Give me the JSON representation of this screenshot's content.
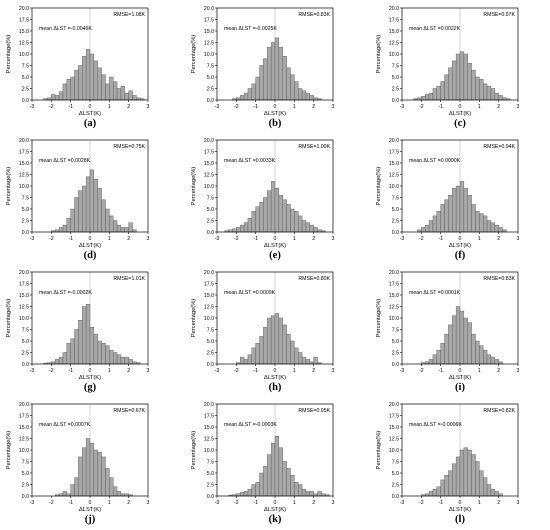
{
  "layout": {
    "rows": 4,
    "cols": 3
  },
  "colors": {
    "bar_fill": "#a8a8a8",
    "bar_stroke": "#555555",
    "zero_line": "#bbbbbb",
    "axis": "#000000"
  },
  "chart_data": [
    {
      "type": "bar",
      "panel": "(a)",
      "xlabel": "ΔLST(K)",
      "ylabel": "Percentage(%)",
      "xlim": [
        -3,
        3
      ],
      "ylim": [
        0,
        20
      ],
      "xticks": [
        -3,
        -2,
        -1,
        0,
        1,
        2,
        3
      ],
      "yticks": [
        0,
        2.5,
        5,
        7.5,
        10,
        12.5,
        15,
        17.5,
        20
      ],
      "rmse_label": "RMSE=1.08K",
      "mean_label": "mean ΔLST =-0.0046K",
      "bin_width": 0.2,
      "bin_centers": [
        -2.3,
        -2.1,
        -1.9,
        -1.7,
        -1.5,
        -1.3,
        -1.1,
        -0.9,
        -0.7,
        -0.5,
        -0.3,
        -0.1,
        0.1,
        0.3,
        0.5,
        0.7,
        0.9,
        1.1,
        1.3,
        1.5,
        1.7,
        1.9,
        2.1,
        2.3,
        2.5,
        2.7
      ],
      "values": [
        0.3,
        0.5,
        1.2,
        1.0,
        1.8,
        3.5,
        4.5,
        5.0,
        6.5,
        7.5,
        9.5,
        11.0,
        10.0,
        8.5,
        7.0,
        5.5,
        3.5,
        5.0,
        4.0,
        2.5,
        3.0,
        1.5,
        2.0,
        1.0,
        0.5,
        0.3
      ]
    },
    {
      "type": "bar",
      "panel": "(b)",
      "xlabel": "ΔLST(K)",
      "ylabel": "Percentage(%)",
      "xlim": [
        -3,
        3
      ],
      "ylim": [
        0,
        20
      ],
      "xticks": [
        -3,
        -2,
        -1,
        0,
        1,
        2,
        3
      ],
      "yticks": [
        0,
        2.5,
        5,
        7.5,
        10,
        12.5,
        15,
        17.5,
        20
      ],
      "rmse_label": "RMSE=0.83K",
      "mean_label": "mean ΔLST =-0.0025K",
      "bin_width": 0.2,
      "bin_centers": [
        -2.1,
        -1.9,
        -1.7,
        -1.5,
        -1.3,
        -1.1,
        -0.9,
        -0.7,
        -0.5,
        -0.3,
        -0.1,
        0.1,
        0.3,
        0.5,
        0.7,
        0.9,
        1.1,
        1.3,
        1.5,
        1.7,
        1.9,
        2.1,
        2.3
      ],
      "values": [
        0.3,
        0.5,
        1.0,
        1.5,
        2.5,
        3.5,
        5.0,
        7.5,
        9.0,
        11.5,
        12.5,
        13.5,
        11.5,
        9.5,
        7.0,
        5.5,
        4.0,
        2.5,
        2.0,
        1.5,
        1.0,
        0.5,
        0.3
      ]
    },
    {
      "type": "bar",
      "panel": "(c)",
      "xlabel": "ΔLST(K)",
      "ylabel": "Percentage(%)",
      "xlim": [
        -3,
        3
      ],
      "ylim": [
        0,
        20
      ],
      "xticks": [
        -3,
        -2,
        -1,
        0,
        1,
        2,
        3
      ],
      "yticks": [
        0,
        2.5,
        5,
        7.5,
        10,
        12.5,
        15,
        17.5,
        20
      ],
      "rmse_label": "RMSE=0.97K",
      "mean_label": "mean ΔLST =0.0022K",
      "bin_width": 0.2,
      "bin_centers": [
        -2.3,
        -2.1,
        -1.9,
        -1.7,
        -1.5,
        -1.3,
        -1.1,
        -0.9,
        -0.7,
        -0.5,
        -0.3,
        -0.1,
        0.1,
        0.3,
        0.5,
        0.7,
        0.9,
        1.1,
        1.3,
        1.5,
        1.7,
        1.9,
        2.1,
        2.3,
        2.5
      ],
      "values": [
        0.3,
        0.5,
        0.8,
        1.2,
        1.5,
        2.5,
        3.0,
        4.0,
        5.5,
        7.0,
        8.5,
        10.0,
        10.5,
        10.0,
        8.0,
        6.5,
        5.0,
        4.5,
        3.5,
        3.0,
        2.5,
        1.5,
        1.0,
        0.5,
        0.3
      ]
    },
    {
      "type": "bar",
      "panel": "(d)",
      "xlabel": "ΔLST(K)",
      "ylabel": "Percentage(%)",
      "xlim": [
        -3,
        3
      ],
      "ylim": [
        0,
        20
      ],
      "xticks": [
        -3,
        -2,
        -1,
        0,
        1,
        2,
        3
      ],
      "yticks": [
        0,
        2.5,
        5,
        7.5,
        10,
        12.5,
        15,
        17.5,
        20
      ],
      "rmse_label": "RMSE=0.75K",
      "mean_label": "mean ΔLST =0.0028K",
      "bin_width": 0.2,
      "bin_centers": [
        -1.9,
        -1.7,
        -1.5,
        -1.3,
        -1.1,
        -0.9,
        -0.7,
        -0.5,
        -0.3,
        -0.1,
        0.1,
        0.3,
        0.5,
        0.7,
        0.9,
        1.1,
        1.3,
        1.5,
        1.7,
        1.9,
        2.1,
        2.3
      ],
      "values": [
        0.3,
        0.5,
        1.0,
        1.5,
        3.0,
        5.0,
        7.5,
        9.0,
        10.0,
        12.0,
        13.5,
        11.5,
        9.5,
        7.0,
        5.0,
        3.5,
        2.5,
        1.5,
        1.0,
        1.0,
        2.0,
        0.5
      ]
    },
    {
      "type": "bar",
      "panel": "(e)",
      "xlabel": "ΔLST(K)",
      "ylabel": "Percentage(%)",
      "xlim": [
        -3,
        3
      ],
      "ylim": [
        0,
        20
      ],
      "xticks": [
        -3,
        -2,
        -1,
        0,
        1,
        2,
        3
      ],
      "yticks": [
        0,
        2.5,
        5,
        7.5,
        10,
        12.5,
        15,
        17.5,
        20
      ],
      "rmse_label": "RMSE=1.00K",
      "mean_label": "mean ΔLST =0.0033K",
      "bin_width": 0.2,
      "bin_centers": [
        -2.5,
        -2.3,
        -2.1,
        -1.9,
        -1.7,
        -1.5,
        -1.3,
        -1.1,
        -0.9,
        -0.7,
        -0.5,
        -0.3,
        -0.1,
        0.1,
        0.3,
        0.5,
        0.7,
        0.9,
        1.1,
        1.3,
        1.5,
        1.7,
        1.9,
        2.1,
        2.3,
        2.5
      ],
      "values": [
        0.3,
        0.5,
        0.7,
        1.0,
        1.5,
        2.0,
        3.0,
        4.5,
        5.5,
        6.5,
        7.5,
        9.0,
        11.0,
        9.5,
        8.0,
        7.0,
        6.0,
        5.0,
        4.5,
        3.5,
        2.5,
        2.0,
        1.5,
        1.0,
        0.5,
        0.3
      ]
    },
    {
      "type": "bar",
      "panel": "(f)",
      "xlabel": "ΔLST(K)",
      "ylabel": "Percentage(%)",
      "xlim": [
        -3,
        3
      ],
      "ylim": [
        0,
        20
      ],
      "xticks": [
        -3,
        -2,
        -1,
        0,
        1,
        2,
        3
      ],
      "yticks": [
        0,
        2.5,
        5,
        7.5,
        10,
        12.5,
        15,
        17.5,
        20
      ],
      "rmse_label": "RMSE=0.94K",
      "mean_label": "mean ΔLST =0.0000K",
      "bin_width": 0.2,
      "bin_centers": [
        -2.1,
        -1.9,
        -1.7,
        -1.5,
        -1.3,
        -1.1,
        -0.9,
        -0.7,
        -0.5,
        -0.3,
        -0.1,
        0.1,
        0.3,
        0.5,
        0.7,
        0.9,
        1.1,
        1.3,
        1.5,
        1.7,
        1.9,
        2.1,
        2.3
      ],
      "values": [
        0.5,
        1.0,
        1.5,
        2.5,
        3.5,
        4.5,
        6.0,
        7.0,
        8.0,
        9.5,
        10.0,
        11.0,
        9.5,
        8.0,
        6.0,
        4.5,
        4.0,
        3.5,
        2.5,
        2.0,
        1.5,
        1.0,
        0.5
      ]
    },
    {
      "type": "bar",
      "panel": "(g)",
      "xlabel": "ΔLST(K)",
      "ylabel": "Percentage(%)",
      "xlim": [
        -3,
        3
      ],
      "ylim": [
        0,
        20
      ],
      "xticks": [
        -3,
        -2,
        -1,
        0,
        1,
        2,
        3
      ],
      "yticks": [
        0,
        2.5,
        5,
        7.5,
        10,
        12.5,
        15,
        17.5,
        20
      ],
      "rmse_label": "RMSE=1.01K",
      "mean_label": "mean ΔLST =-0.0002K",
      "bin_width": 0.2,
      "bin_centers": [
        -2.3,
        -2.1,
        -1.9,
        -1.7,
        -1.5,
        -1.3,
        -1.1,
        -0.9,
        -0.7,
        -0.5,
        -0.3,
        -0.1,
        0.1,
        0.3,
        0.5,
        0.7,
        0.9,
        1.1,
        1.3,
        1.5,
        1.7,
        1.9,
        2.1,
        2.3,
        2.5
      ],
      "values": [
        0.2,
        0.3,
        0.5,
        1.0,
        1.5,
        2.5,
        4.5,
        5.5,
        7.5,
        9.5,
        12.5,
        13.0,
        8.0,
        6.5,
        5.0,
        4.5,
        4.0,
        3.0,
        2.5,
        2.0,
        1.5,
        1.5,
        1.0,
        0.5,
        0.3
      ]
    },
    {
      "type": "bar",
      "panel": "(h)",
      "xlabel": "ΔLST(K)",
      "ylabel": "Percentage(%)",
      "xlim": [
        -3,
        3
      ],
      "ylim": [
        0,
        20
      ],
      "xticks": [
        -3,
        -2,
        -1,
        0,
        1,
        2,
        3
      ],
      "yticks": [
        0,
        2.5,
        5,
        7.5,
        10,
        12.5,
        15,
        17.5,
        20
      ],
      "rmse_label": "RMSE=0.80K",
      "mean_label": "mean ΔLST =0.0009K",
      "bin_width": 0.2,
      "bin_centers": [
        -1.9,
        -1.7,
        -1.5,
        -1.3,
        -1.1,
        -0.9,
        -0.7,
        -0.5,
        -0.3,
        -0.1,
        0.1,
        0.3,
        0.5,
        0.7,
        0.9,
        1.1,
        1.3,
        1.5,
        1.7,
        1.9,
        2.1,
        2.3
      ],
      "values": [
        0.3,
        1.5,
        1.0,
        2.0,
        3.5,
        4.5,
        6.0,
        8.0,
        10.0,
        10.5,
        11.0,
        10.0,
        8.5,
        6.5,
        5.0,
        3.5,
        2.5,
        1.5,
        1.0,
        0.5,
        1.5,
        0.3
      ]
    },
    {
      "type": "bar",
      "panel": "(i)",
      "xlabel": "ΔLST(K)",
      "ylabel": "Percentage(%)",
      "xlim": [
        -3,
        3
      ],
      "ylim": [
        0,
        20
      ],
      "xticks": [
        -3,
        -2,
        -1,
        0,
        1,
        2,
        3
      ],
      "yticks": [
        0,
        2.5,
        5,
        7.5,
        10,
        12.5,
        15,
        17.5,
        20
      ],
      "rmse_label": "RMSE=0.83K",
      "mean_label": "mean ΔLST =0.0001K",
      "bin_width": 0.2,
      "bin_centers": [
        -1.9,
        -1.7,
        -1.5,
        -1.3,
        -1.1,
        -0.9,
        -0.7,
        -0.5,
        -0.3,
        -0.1,
        0.1,
        0.3,
        0.5,
        0.7,
        0.9,
        1.1,
        1.3,
        1.5,
        1.7,
        1.9,
        2.1
      ],
      "values": [
        0.3,
        0.5,
        1.0,
        2.0,
        3.0,
        4.5,
        6.5,
        8.5,
        10.5,
        12.5,
        11.5,
        10.0,
        9.0,
        6.5,
        5.0,
        4.0,
        3.0,
        2.0,
        1.5,
        1.0,
        0.5
      ]
    },
    {
      "type": "bar",
      "panel": "(j)",
      "xlabel": "ΔLST(K)",
      "ylabel": "Percentage(%)",
      "xlim": [
        -3,
        3
      ],
      "ylim": [
        0,
        20
      ],
      "xticks": [
        -3,
        -2,
        -1,
        0,
        1,
        2,
        3
      ],
      "yticks": [
        0,
        2.5,
        5,
        7.5,
        10,
        12.5,
        15,
        17.5,
        20
      ],
      "rmse_label": "RMSE=0.67K",
      "mean_label": "mean ΔLST =0.0007K",
      "bin_width": 0.2,
      "bin_centers": [
        -1.7,
        -1.5,
        -1.3,
        -1.1,
        -0.9,
        -0.7,
        -0.5,
        -0.3,
        -0.1,
        0.1,
        0.3,
        0.5,
        0.7,
        0.9,
        1.1,
        1.3,
        1.5,
        1.7,
        1.9,
        2.1
      ],
      "values": [
        0.3,
        0.5,
        1.0,
        0.5,
        2.5,
        4.0,
        8.5,
        10.5,
        12.5,
        11.5,
        10.0,
        9.5,
        8.5,
        6.0,
        4.0,
        2.0,
        1.0,
        0.5,
        0.5,
        0.3
      ]
    },
    {
      "type": "bar",
      "panel": "(k)",
      "xlabel": "ΔLST(K)",
      "ylabel": "Percentage(%)",
      "xlim": [
        -3,
        3
      ],
      "ylim": [
        0,
        20
      ],
      "xticks": [
        -3,
        -2,
        -1,
        0,
        1,
        2,
        3
      ],
      "yticks": [
        0,
        2.5,
        5,
        7.5,
        10,
        12.5,
        15,
        17.5,
        20
      ],
      "rmse_label": "RMSE=0.95K",
      "mean_label": "mean ΔLST =-0.0003K",
      "bin_width": 0.2,
      "bin_centers": [
        -2.3,
        -2.1,
        -1.9,
        -1.7,
        -1.5,
        -1.3,
        -1.1,
        -0.9,
        -0.7,
        -0.5,
        -0.3,
        -0.1,
        0.1,
        0.3,
        0.5,
        0.7,
        0.9,
        1.1,
        1.3,
        1.5,
        1.7,
        1.9,
        2.1,
        2.3,
        2.5,
        2.7
      ],
      "values": [
        0.2,
        0.3,
        0.5,
        0.8,
        1.0,
        1.5,
        2.5,
        3.0,
        5.0,
        6.5,
        9.0,
        11.5,
        13.0,
        10.5,
        7.5,
        6.0,
        4.5,
        3.0,
        2.5,
        1.5,
        1.0,
        1.0,
        0.5,
        1.0,
        0.5,
        0.3
      ]
    },
    {
      "type": "bar",
      "panel": "(l)",
      "xlabel": "ΔLST(K)",
      "ylabel": "Percentage(%)",
      "xlim": [
        -3,
        3
      ],
      "ylim": [
        0,
        20
      ],
      "xticks": [
        -3,
        -2,
        -1,
        0,
        1,
        2,
        3
      ],
      "yticks": [
        0,
        2.5,
        5,
        7.5,
        10,
        12.5,
        15,
        17.5,
        20
      ],
      "rmse_label": "RMSE=0.82K",
      "mean_label": "mean ΔLST =-0.0006K",
      "bin_width": 0.2,
      "bin_centers": [
        -1.9,
        -1.7,
        -1.5,
        -1.3,
        -1.1,
        -0.9,
        -0.7,
        -0.5,
        -0.3,
        -0.1,
        0.1,
        0.3,
        0.5,
        0.7,
        0.9,
        1.1,
        1.3,
        1.5,
        1.7,
        1.9,
        2.1
      ],
      "values": [
        0.3,
        0.5,
        1.0,
        1.5,
        2.0,
        3.5,
        4.5,
        5.5,
        7.0,
        8.5,
        10.0,
        10.5,
        10.0,
        9.0,
        7.5,
        5.5,
        4.0,
        2.5,
        1.5,
        1.0,
        0.5
      ]
    }
  ]
}
